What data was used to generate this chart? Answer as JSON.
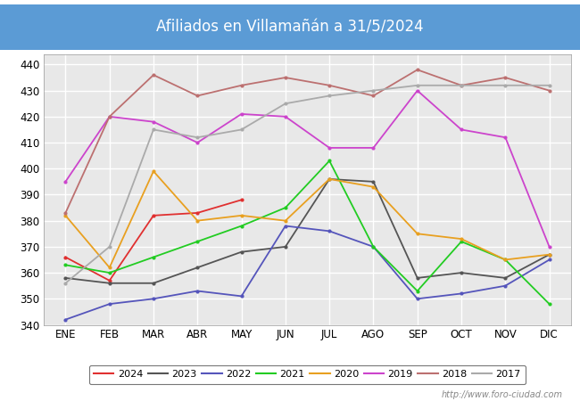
{
  "title": "Afiliados en Villamañán a 31/5/2024",
  "title_bg_color": "#5b9bd5",
  "title_text_color": "white",
  "ylim": [
    340,
    444
  ],
  "yticks": [
    340,
    350,
    360,
    370,
    380,
    390,
    400,
    410,
    420,
    430,
    440
  ],
  "months": [
    "ENE",
    "FEB",
    "MAR",
    "ABR",
    "MAY",
    "JUN",
    "JUL",
    "AGO",
    "SEP",
    "OCT",
    "NOV",
    "DIC"
  ],
  "watermark": "http://www.foro-ciudad.com",
  "series": [
    {
      "year": "2024",
      "color": "#e03030",
      "data": [
        366,
        357,
        382,
        383,
        388,
        null,
        null,
        null,
        null,
        null,
        null,
        null
      ]
    },
    {
      "year": "2023",
      "color": "#555555",
      "data": [
        358,
        356,
        356,
        362,
        368,
        370,
        396,
        395,
        358,
        360,
        358,
        367
      ]
    },
    {
      "year": "2022",
      "color": "#5555bb",
      "data": [
        342,
        348,
        350,
        353,
        351,
        378,
        376,
        370,
        350,
        352,
        355,
        365
      ]
    },
    {
      "year": "2021",
      "color": "#22cc22",
      "data": [
        363,
        360,
        366,
        372,
        378,
        385,
        403,
        370,
        353,
        372,
        365,
        348
      ]
    },
    {
      "year": "2020",
      "color": "#e8a020",
      "data": [
        382,
        362,
        399,
        380,
        382,
        380,
        396,
        393,
        375,
        373,
        365,
        367
      ]
    },
    {
      "year": "2019",
      "color": "#cc44cc",
      "data": [
        395,
        420,
        418,
        410,
        421,
        420,
        408,
        408,
        430,
        415,
        412,
        370
      ]
    },
    {
      "year": "2018",
      "color": "#bc7070",
      "data": [
        383,
        420,
        436,
        428,
        432,
        435,
        432,
        428,
        438,
        432,
        435,
        430
      ]
    },
    {
      "year": "2017",
      "color": "#aaaaaa",
      "data": [
        356,
        370,
        415,
        412,
        415,
        425,
        428,
        430,
        432,
        432,
        432,
        432
      ]
    }
  ]
}
